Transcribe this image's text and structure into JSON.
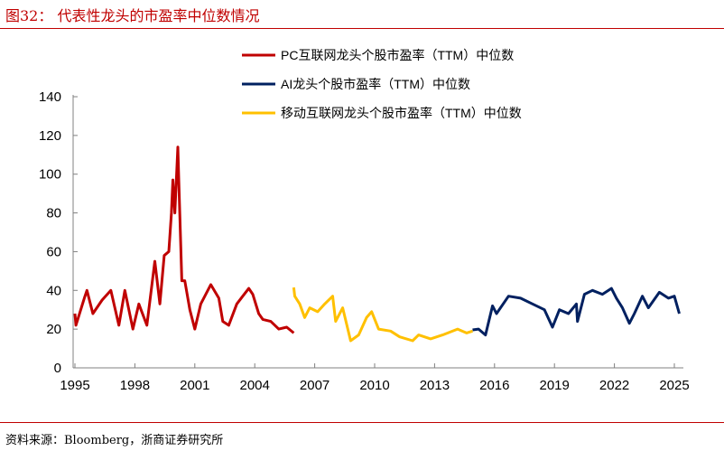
{
  "header": {
    "title": "图32：  代表性龙头的市盈率中位数情况"
  },
  "footer": {
    "source": "资料来源：Bloomberg，浙商证券研究所"
  },
  "chart_data": {
    "type": "line",
    "title": "代表性龙头的市盈率中位数情况",
    "xlabel": "",
    "ylabel": "",
    "xlim": [
      1995,
      2025.4
    ],
    "ylim": [
      0,
      140
    ],
    "yticks": [
      0,
      20,
      40,
      60,
      80,
      100,
      120,
      140
    ],
    "xticks": [
      1995,
      1998,
      2001,
      2004,
      2007,
      2010,
      2013,
      2016,
      2019,
      2022,
      2025
    ],
    "grid": false,
    "legend_position": "top-right",
    "series": [
      {
        "name": "PC互联网龙头个股市盈率（TTM）中位数",
        "color": "#c00000",
        "x": [
          1995.0,
          1995.05,
          1995.47,
          1995.6,
          1995.9,
          1996.36,
          1996.8,
          1997.2,
          1997.5,
          1997.9,
          1998.2,
          1998.6,
          1999.0,
          1999.25,
          1999.47,
          1999.7,
          1999.83,
          1999.9,
          2000.0,
          2000.15,
          2000.2,
          2000.35,
          2000.5,
          2000.75,
          2001.0,
          2001.3,
          2001.8,
          2002.2,
          2002.4,
          2002.7,
          2003.1,
          2003.4,
          2003.7,
          2003.9,
          2004.2,
          2004.4,
          2004.8,
          2005.2,
          2005.6,
          2005.95
        ],
        "y": [
          28,
          22,
          36,
          40,
          28,
          35,
          40,
          22,
          40,
          20,
          33,
          22,
          55,
          33,
          58,
          60,
          80,
          97,
          80,
          114,
          96,
          45,
          45,
          30,
          20,
          33,
          43,
          36,
          24,
          22,
          33,
          37,
          41,
          38,
          28,
          25,
          24,
          20,
          21,
          18
        ]
      },
      {
        "name": "AI龙头个股市盈率（TTM）中位数",
        "color": "#002060",
        "x": [
          2014.9,
          2015.2,
          2015.55,
          2015.9,
          2016.1,
          2016.7,
          2017.3,
          2017.9,
          2018.5,
          2018.9,
          2019.25,
          2019.7,
          2020.1,
          2020.15,
          2020.5,
          2020.9,
          2021.4,
          2021.85,
          2022.1,
          2022.4,
          2022.75,
          2023.0,
          2023.4,
          2023.7,
          2024.25,
          2024.7,
          2025.0,
          2025.25
        ],
        "y": [
          19.6,
          20,
          17,
          32,
          28,
          37,
          36,
          33,
          30,
          21,
          30,
          28,
          33,
          24,
          38,
          40,
          38,
          41,
          36,
          31,
          23,
          28,
          37,
          31,
          39,
          36,
          37,
          28
        ]
      },
      {
        "name": "移动互联网龙头个股市盈率（TTM）中位数",
        "color": "#ffc000",
        "x": [
          2005.95,
          2006.0,
          2006.25,
          2006.5,
          2006.75,
          2007.15,
          2007.5,
          2007.9,
          2008.05,
          2008.4,
          2008.8,
          2009.2,
          2009.6,
          2009.85,
          2010.2,
          2010.8,
          2011.25,
          2011.9,
          2012.2,
          2012.8,
          2013.4,
          2014.15,
          2014.6,
          2014.9
        ],
        "y": [
          41.5,
          37,
          33,
          26,
          31,
          29,
          33,
          37,
          24,
          31,
          14,
          17,
          26,
          29,
          20,
          19,
          16,
          14,
          17,
          15,
          17,
          20,
          18,
          19
        ]
      }
    ]
  }
}
